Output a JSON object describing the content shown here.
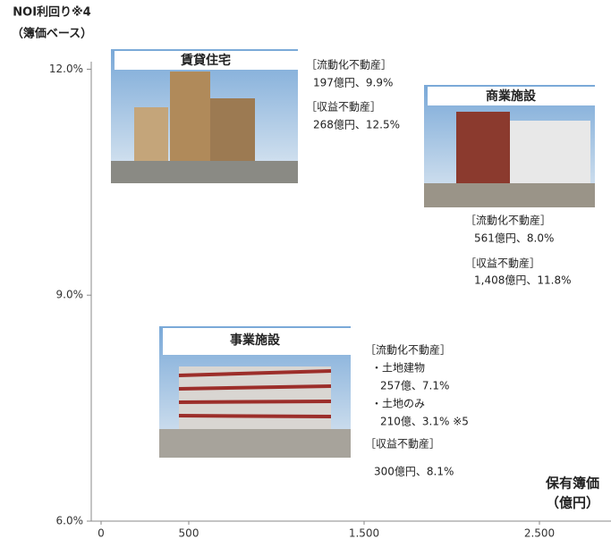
{
  "chart_data": {
    "type": "annotated",
    "ytitle": [
      "NOI利回り※4",
      "（簿価ベース）"
    ],
    "xtitle": [
      "保有簿価",
      "（億円）"
    ],
    "ylim": [
      6,
      12.1
    ],
    "yticks": [
      {
        "value": 6,
        "label": "6.0%"
      },
      {
        "value": 9,
        "label": "9.0%"
      },
      {
        "value": 12,
        "label": "12.0%"
      }
    ],
    "xlim": [
      0,
      2900
    ],
    "xticks": [
      0,
      500,
      {
        "value": 1500,
        "label": "1.500"
      },
      {
        "value": 2500,
        "label": "2.500"
      }
    ],
    "groups": [
      {
        "title": "賃貸住宅",
        "lines": [
          "［流動化不動産］",
          "197億円、9.9%",
          "［収益不動産］",
          "268億円、12.5%"
        ]
      },
      {
        "title": "商業施設",
        "lines": [
          "［流動化不動産］",
          "561億円、8.0%",
          "［収益不動産］",
          "1,408億円、11.8%"
        ]
      },
      {
        "title": "事業施設",
        "lines": [
          "［流動化不動産］",
          "・土地建物",
          "257億、7.1%",
          "・土地のみ",
          "210億、3.1% ※5",
          "［収益不動産］",
          "300億円、8.1%"
        ]
      }
    ]
  }
}
